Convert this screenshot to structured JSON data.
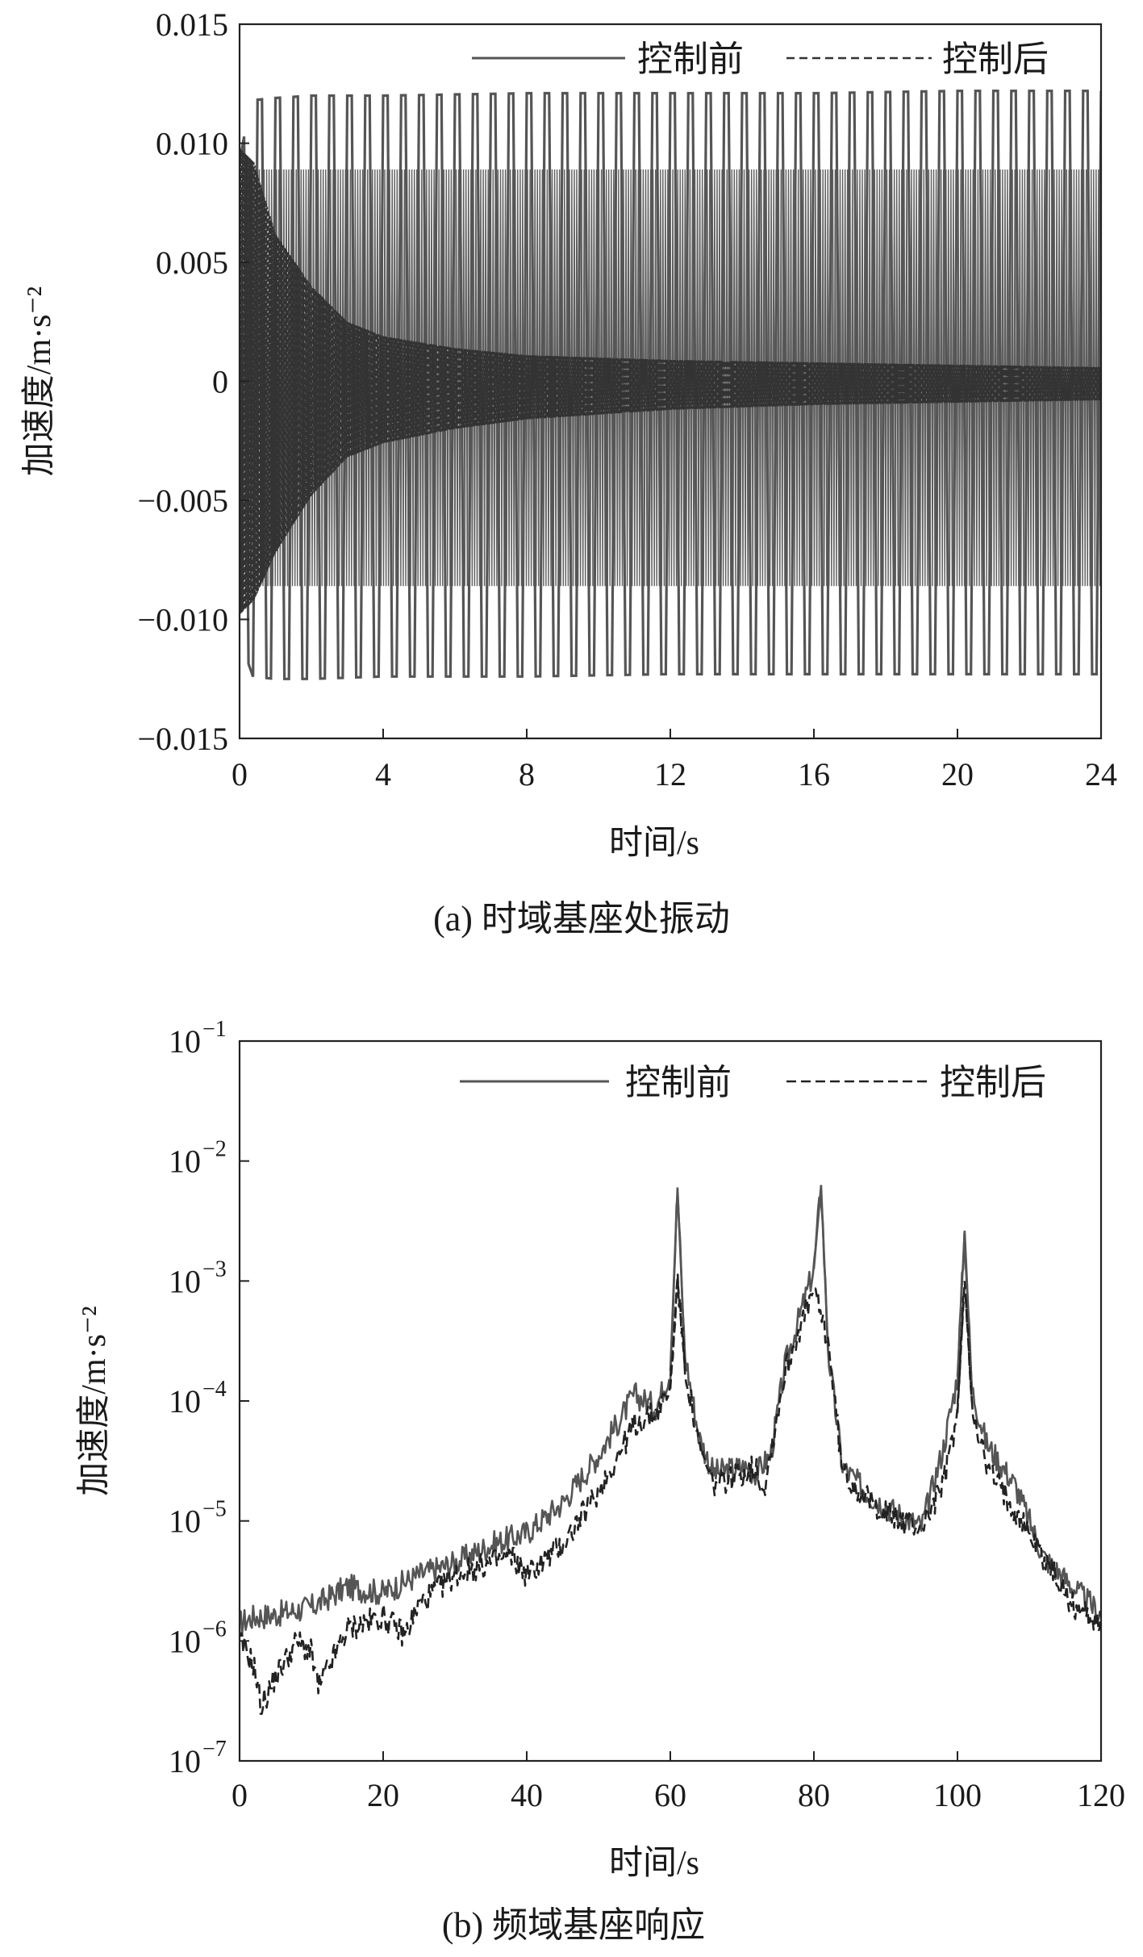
{
  "chart_data": [
    {
      "type": "line",
      "caption": "(a) 时域基座处振动",
      "xlabel": "时间/s",
      "ylabel": "加速度/m·s⁻²",
      "xlim": [
        0,
        24
      ],
      "ylim": [
        -0.015,
        0.015
      ],
      "xticks": [
        0,
        4,
        8,
        12,
        16,
        20,
        24
      ],
      "yticks": [
        -0.015,
        -0.01,
        -0.005,
        0,
        0.005,
        0.01,
        0.015
      ],
      "ytick_labels": [
        "−0.015",
        "−0.010",
        "−0.005",
        "0",
        "0.005",
        "0.010",
        "0.015"
      ],
      "legend_position": "top-right",
      "series": [
        {
          "name": "控制前",
          "style": "solid",
          "color": "#555555",
          "envelope": {
            "t": [
              0,
              0.3,
              1,
              2,
              4,
              8,
              12,
              16,
              20,
              24
            ],
            "upper": [
              0.0092,
              0.0118,
              0.0119,
              0.012,
              0.012,
              0.0121,
              0.0121,
              0.0121,
              0.0122,
              0.0122
            ],
            "lower": [
              -0.0092,
              -0.0124,
              -0.0125,
              -0.0125,
              -0.0124,
              -0.0124,
              -0.0123,
              -0.0123,
              -0.0123,
              -0.0123
            ],
            "cycles_per_unit": 2.0
          }
        },
        {
          "name": "控制后",
          "style": "dashed",
          "color": "#333333",
          "envelope": {
            "t": [
              0,
              0.4,
              1,
              2,
              3,
              4,
              6,
              8,
              12,
              16,
              20,
              24
            ],
            "upper": [
              0.0098,
              0.0092,
              0.0062,
              0.004,
              0.0025,
              0.0019,
              0.0014,
              0.0011,
              0.0009,
              0.0008,
              0.0007,
              0.0006
            ],
            "lower": [
              -0.0098,
              -0.0092,
              -0.0072,
              -0.0048,
              -0.0032,
              -0.0026,
              -0.002,
              -0.0016,
              -0.0012,
              -0.001,
              -0.0009,
              -0.0008
            ]
          }
        }
      ]
    },
    {
      "type": "line",
      "caption": "(b) 频域基座响应",
      "xlabel": "时间/s",
      "ylabel": "加速度/m·s⁻²",
      "xlim": [
        0,
        120
      ],
      "ylim_log10": [
        -7,
        -1
      ],
      "yscale": "log",
      "xticks": [
        0,
        20,
        40,
        60,
        80,
        100,
        120
      ],
      "yticks_exponents": [
        -7,
        -6,
        -5,
        -4,
        -3,
        -2,
        -1
      ],
      "ytick_base": "10",
      "legend_position": "top-right",
      "series": [
        {
          "name": "控制前",
          "style": "solid",
          "color": "#555555",
          "x": [
            0,
            2,
            5,
            10,
            15,
            20,
            25,
            30,
            35,
            40,
            45,
            50,
            55,
            58,
            60,
            61,
            62,
            64,
            66,
            70,
            72,
            74,
            76,
            78,
            80,
            81,
            82,
            84,
            88,
            92,
            95,
            98,
            100,
            101,
            102,
            104,
            108,
            112,
            116,
            120
          ],
          "log10_y": [
            -5.85,
            -5.8,
            -5.78,
            -5.72,
            -5.55,
            -5.6,
            -5.45,
            -5.35,
            -5.2,
            -5.1,
            -4.85,
            -4.45,
            -3.95,
            -4.05,
            -3.75,
            -2.22,
            -3.6,
            -4.3,
            -4.6,
            -4.55,
            -4.6,
            -4.45,
            -3.7,
            -3.3,
            -2.9,
            -2.2,
            -3.6,
            -4.55,
            -4.8,
            -4.95,
            -5.05,
            -4.4,
            -3.8,
            -2.58,
            -3.9,
            -4.35,
            -4.7,
            -5.3,
            -5.55,
            -5.78
          ]
        },
        {
          "name": "控制后",
          "style": "dashed",
          "color": "#222222",
          "x": [
            0,
            2,
            3,
            5,
            8,
            10,
            11,
            15,
            20,
            23,
            25,
            30,
            35,
            38,
            40,
            45,
            50,
            55,
            58,
            60,
            61,
            62,
            64,
            66,
            70,
            72,
            73,
            76,
            78,
            80,
            82,
            84,
            88,
            92,
            95,
            98,
            100,
            101,
            102,
            104,
            108,
            112,
            116,
            120
          ],
          "log10_y": [
            -6.0,
            -6.2,
            -6.55,
            -6.3,
            -6.0,
            -6.1,
            -6.4,
            -5.9,
            -5.8,
            -5.95,
            -5.7,
            -5.45,
            -5.35,
            -5.3,
            -5.45,
            -5.2,
            -4.75,
            -4.2,
            -4.1,
            -3.9,
            -2.98,
            -3.7,
            -4.4,
            -4.7,
            -4.6,
            -4.55,
            -4.75,
            -3.75,
            -3.4,
            -3.08,
            -3.5,
            -4.6,
            -4.85,
            -5.0,
            -5.05,
            -4.7,
            -4.1,
            -3.0,
            -4.0,
            -4.55,
            -4.9,
            -5.3,
            -5.7,
            -5.85
          ]
        }
      ]
    }
  ]
}
